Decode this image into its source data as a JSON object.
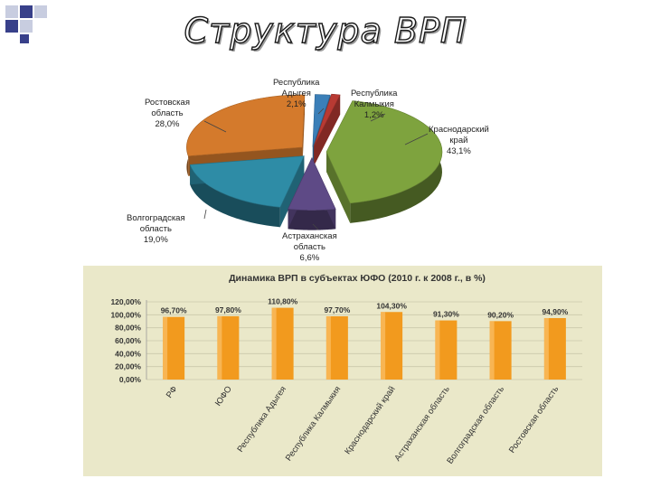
{
  "slide": {
    "title": "Структура ВРП"
  },
  "chart_data": [
    {
      "type": "pie",
      "title": "",
      "labels": [
        "Республика Адыгея",
        "Республика Калмыкия",
        "Краснодарский край",
        "Астраханская область",
        "Волгоградская область",
        "Ростовская область"
      ],
      "values": [
        2.1,
        1.2,
        43.1,
        6.6,
        19.0,
        28.0
      ],
      "value_labels": [
        "2,1%",
        "1,2%",
        "43,1%",
        "6,6%",
        "19,0%",
        "28,0%"
      ],
      "label_lines": [
        [
          "Республика",
          "Адыгея"
        ],
        [
          "Республика",
          "Калмыкия"
        ],
        [
          "Краснодарский",
          "край"
        ],
        [
          "Астраханская",
          "область"
        ],
        [
          "Волгоградская",
          "область"
        ],
        [
          "Ростовская",
          "область"
        ]
      ],
      "colors": [
        "#3b7fb8",
        "#b83a33",
        "#7ea33e",
        "#5e4a86",
        "#2e8ca6",
        "#d47a2c"
      ],
      "style": "3d-exploded"
    },
    {
      "type": "bar",
      "title": "Динамика ВРП в субъектах ЮФО (2010 г. к 2008 г., в %)",
      "categories": [
        "РФ",
        "ЮФО",
        "Республика Адыгея",
        "Республика Калмыкия",
        "Краснодарский край",
        "Астраханская область",
        "Волгоградская область",
        "Ростовская область"
      ],
      "values": [
        96.7,
        97.8,
        110.8,
        97.7,
        104.3,
        91.3,
        90.2,
        94.9
      ],
      "value_labels": [
        "96,70%",
        "97,80%",
        "110,80%",
        "97,70%",
        "104,30%",
        "91,30%",
        "90,20%",
        "94,90%"
      ],
      "ylim": [
        0,
        120
      ],
      "yticks": [
        "0,00%",
        "20,00%",
        "40,00%",
        "60,00%",
        "80,00%",
        "100,00%",
        "120,00%"
      ],
      "xlabel": "",
      "ylabel": "",
      "grid": true,
      "colors": {
        "bar": "#f29a1e",
        "panel": "#eae8c9",
        "grid": "#c9c7ab"
      }
    }
  ]
}
